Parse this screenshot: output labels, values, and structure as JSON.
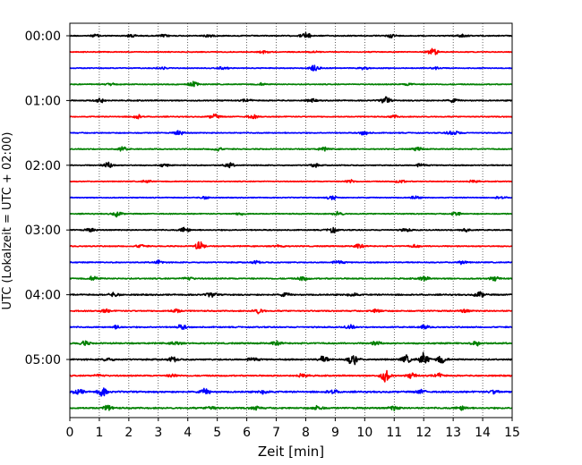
{
  "chart_data": {
    "type": "line",
    "title": "",
    "xlabel": "Zeit  [min]",
    "ylabel": "UTC (Lokalzeit = UTC + 02:00)",
    "xlim": [
      0,
      15
    ],
    "x_ticks": [
      "0",
      "1",
      "2",
      "3",
      "4",
      "5",
      "6",
      "7",
      "8",
      "9",
      "10",
      "11",
      "12",
      "13",
      "14",
      "15"
    ],
    "y_tick_labels": [
      "00:00",
      "01:00",
      "02:00",
      "03:00",
      "04:00",
      "05:00"
    ],
    "grid": "vertical dotted lines at each minute",
    "trace_interval_min": 15,
    "trace_colors": [
      "#000000",
      "#ff0000",
      "#0000ff",
      "#008000"
    ],
    "traces": [
      {
        "start": "00:00",
        "color": "#000000",
        "amp": 0.6,
        "bursts": [
          [
            8.0,
            1.2
          ],
          [
            2.1,
            0.6
          ],
          [
            3.2,
            0.5
          ],
          [
            4.7,
            0.5
          ],
          [
            10.9,
            0.6
          ],
          [
            13.3,
            0.6
          ],
          [
            0.9,
            0.5
          ]
        ]
      },
      {
        "start": "00:15",
        "color": "#ff0000",
        "amp": 0.5,
        "bursts": [
          [
            12.3,
            1.4
          ],
          [
            6.6,
            0.5
          ],
          [
            8.3,
            0.4
          ]
        ]
      },
      {
        "start": "00:30",
        "color": "#0000ff",
        "amp": 0.5,
        "bursts": [
          [
            8.3,
            1.3
          ],
          [
            3.1,
            0.5
          ],
          [
            5.2,
            0.5
          ],
          [
            10.0,
            0.5
          ],
          [
            12.4,
            0.4
          ]
        ]
      },
      {
        "start": "00:45",
        "color": "#008000",
        "amp": 0.55,
        "bursts": [
          [
            4.2,
            0.9
          ],
          [
            11.5,
            0.5
          ],
          [
            1.4,
            0.4
          ],
          [
            6.5,
            0.4
          ]
        ]
      },
      {
        "start": "01:00",
        "color": "#000000",
        "amp": 0.6,
        "bursts": [
          [
            1.0,
            1.0
          ],
          [
            10.7,
            1.3
          ],
          [
            8.2,
            0.6
          ],
          [
            13.0,
            0.6
          ],
          [
            6.0,
            0.5
          ]
        ]
      },
      {
        "start": "01:15",
        "color": "#ff0000",
        "amp": 0.55,
        "bursts": [
          [
            4.9,
            0.9
          ],
          [
            2.3,
            0.7
          ],
          [
            6.2,
            0.7
          ],
          [
            11.0,
            0.5
          ]
        ]
      },
      {
        "start": "01:30",
        "color": "#0000ff",
        "amp": 0.55,
        "bursts": [
          [
            3.7,
            0.8
          ],
          [
            10.0,
            0.8
          ],
          [
            13.1,
            0.6
          ],
          [
            12.9,
            0.5
          ]
        ]
      },
      {
        "start": "01:45",
        "color": "#008000",
        "amp": 0.6,
        "bursts": [
          [
            1.8,
            0.7
          ],
          [
            5.0,
            0.7
          ],
          [
            8.6,
            0.6
          ],
          [
            11.8,
            0.6
          ]
        ]
      },
      {
        "start": "02:00",
        "color": "#000000",
        "amp": 0.55,
        "bursts": [
          [
            1.3,
            1.3
          ],
          [
            5.4,
            0.9
          ],
          [
            8.3,
            0.6
          ],
          [
            11.9,
            0.6
          ],
          [
            3.2,
            0.5
          ]
        ]
      },
      {
        "start": "02:15",
        "color": "#ff0000",
        "amp": 0.5,
        "bursts": [
          [
            9.5,
            0.7
          ],
          [
            11.2,
            0.6
          ],
          [
            13.7,
            0.6
          ],
          [
            2.6,
            0.5
          ]
        ]
      },
      {
        "start": "02:30",
        "color": "#0000ff",
        "amp": 0.5,
        "bursts": [
          [
            8.9,
            0.9
          ],
          [
            11.7,
            0.6
          ],
          [
            14.6,
            0.5
          ],
          [
            4.6,
            0.5
          ]
        ]
      },
      {
        "start": "02:45",
        "color": "#008000",
        "amp": 0.55,
        "bursts": [
          [
            1.6,
            1.0
          ],
          [
            9.1,
            0.8
          ],
          [
            13.1,
            0.8
          ],
          [
            5.8,
            0.5
          ]
        ]
      },
      {
        "start": "03:00",
        "color": "#000000",
        "amp": 0.6,
        "bursts": [
          [
            3.9,
            1.0
          ],
          [
            8.9,
            1.0
          ],
          [
            13.4,
            0.7
          ],
          [
            0.7,
            0.6
          ],
          [
            11.4,
            0.6
          ]
        ]
      },
      {
        "start": "03:15",
        "color": "#ff0000",
        "amp": 0.6,
        "bursts": [
          [
            4.4,
            1.6
          ],
          [
            9.8,
            0.8
          ],
          [
            2.4,
            0.6
          ],
          [
            11.7,
            0.5
          ],
          [
            7.1,
            0.5
          ]
        ]
      },
      {
        "start": "03:30",
        "color": "#0000ff",
        "amp": 0.6,
        "bursts": [
          [
            3.0,
            0.7
          ],
          [
            9.1,
            0.7
          ],
          [
            13.3,
            0.6
          ],
          [
            6.3,
            0.5
          ]
        ]
      },
      {
        "start": "03:45",
        "color": "#008000",
        "amp": 0.7,
        "bursts": [
          [
            0.8,
            0.8
          ],
          [
            4.0,
            0.7
          ],
          [
            7.9,
            0.7
          ],
          [
            12.0,
            0.8
          ],
          [
            14.4,
            0.7
          ]
        ]
      },
      {
        "start": "04:00",
        "color": "#000000",
        "amp": 0.75,
        "bursts": [
          [
            4.8,
            0.9
          ],
          [
            13.9,
            1.1
          ],
          [
            9.6,
            0.8
          ],
          [
            1.5,
            0.7
          ],
          [
            7.3,
            0.6
          ]
        ]
      },
      {
        "start": "04:15",
        "color": "#ff0000",
        "amp": 0.7,
        "bursts": [
          [
            6.4,
            1.0
          ],
          [
            3.6,
            0.7
          ],
          [
            10.4,
            0.7
          ],
          [
            13.4,
            0.6
          ],
          [
            1.2,
            0.6
          ]
        ]
      },
      {
        "start": "04:30",
        "color": "#0000ff",
        "amp": 0.7,
        "bursts": [
          [
            3.8,
            0.9
          ],
          [
            9.5,
            0.7
          ],
          [
            12.0,
            0.7
          ],
          [
            1.6,
            0.6
          ]
        ]
      },
      {
        "start": "04:45",
        "color": "#008000",
        "amp": 0.8,
        "bursts": [
          [
            0.5,
            0.8
          ],
          [
            3.6,
            0.7
          ],
          [
            7.0,
            0.7
          ],
          [
            10.4,
            0.8
          ],
          [
            13.8,
            0.8
          ]
        ]
      },
      {
        "start": "05:00",
        "color": "#000000",
        "amp": 0.8,
        "bursts": [
          [
            9.6,
            2.2
          ],
          [
            12.0,
            2.3
          ],
          [
            11.4,
            1.4
          ],
          [
            12.6,
            1.4
          ],
          [
            8.6,
            1.2
          ],
          [
            3.5,
            0.8
          ],
          [
            6.2,
            0.7
          ],
          [
            1.3,
            0.6
          ]
        ]
      },
      {
        "start": "05:15",
        "color": "#ff0000",
        "amp": 0.75,
        "bursts": [
          [
            10.7,
            2.2
          ],
          [
            7.9,
            0.8
          ],
          [
            11.6,
            0.9
          ],
          [
            12.5,
            0.8
          ],
          [
            3.5,
            0.6
          ],
          [
            1.0,
            0.5
          ]
        ]
      },
      {
        "start": "05:30",
        "color": "#0000ff",
        "amp": 0.9,
        "bursts": [
          [
            1.1,
            1.6
          ],
          [
            4.6,
            1.0
          ],
          [
            0.3,
            1.0
          ],
          [
            8.9,
            0.8
          ],
          [
            11.9,
            0.7
          ],
          [
            14.4,
            0.7
          ],
          [
            6.6,
            0.8
          ]
        ]
      },
      {
        "start": "05:45",
        "color": "#008000",
        "amp": 0.85,
        "bursts": [
          [
            1.3,
            1.0
          ],
          [
            4.8,
            0.8
          ],
          [
            8.4,
            0.9
          ],
          [
            11.0,
            0.8
          ],
          [
            13.3,
            0.8
          ],
          [
            6.3,
            0.7
          ]
        ]
      }
    ]
  }
}
